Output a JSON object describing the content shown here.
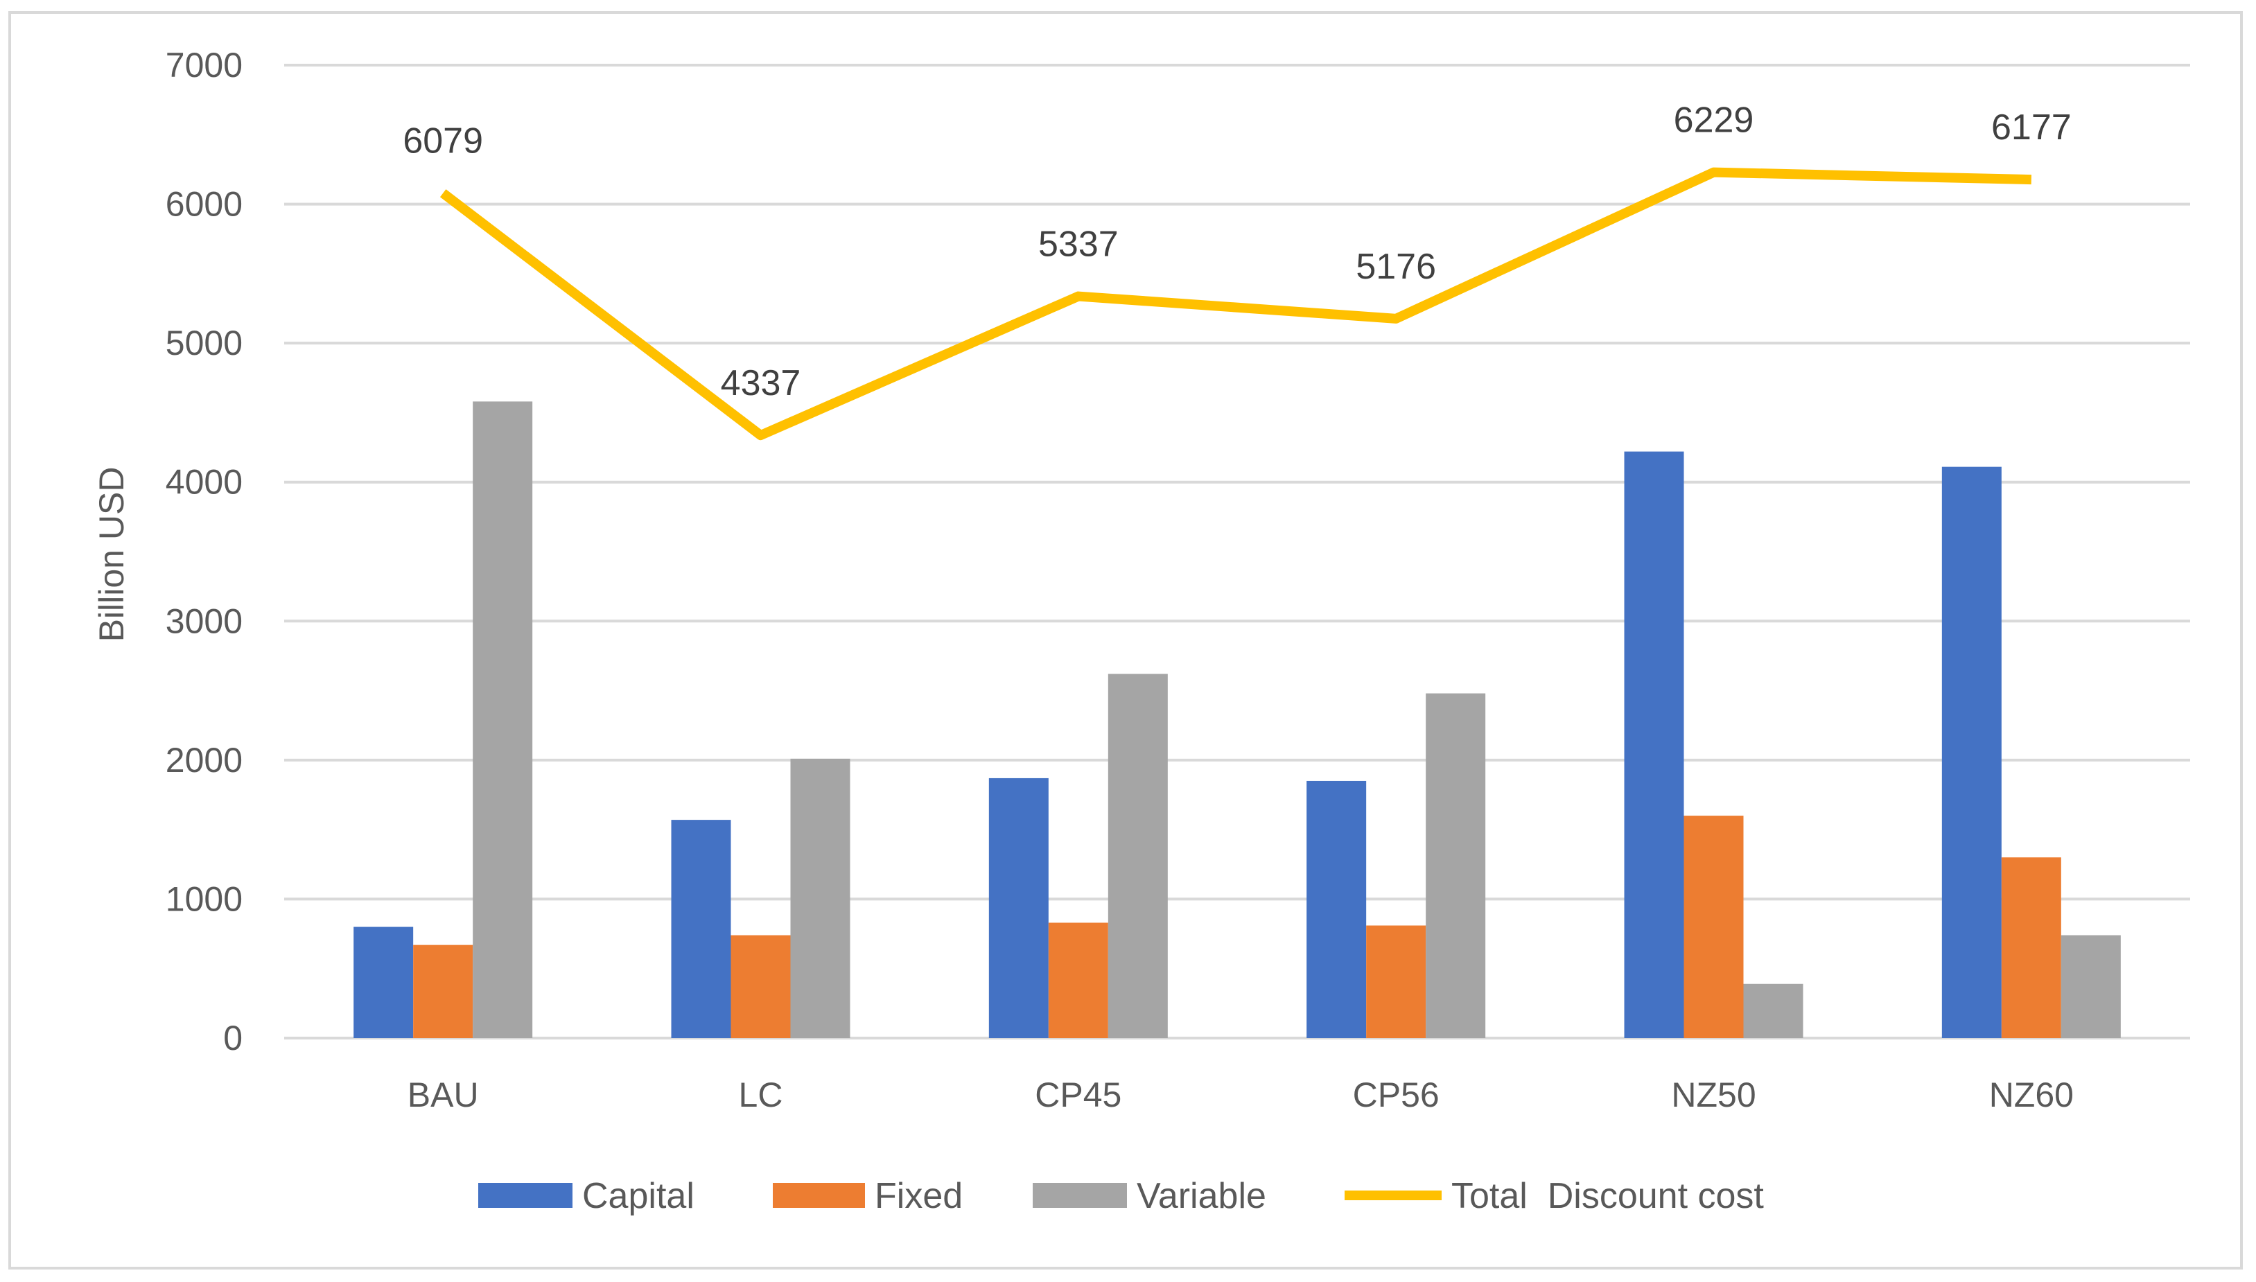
{
  "chart_data": {
    "type": "bar",
    "title": "",
    "xlabel": "",
    "ylabel": "Billion USD",
    "ylim": [
      0,
      7000
    ],
    "yticks": [
      0,
      1000,
      2000,
      3000,
      4000,
      5000,
      6000,
      7000
    ],
    "grid": true,
    "legend_position": "bottom",
    "categories": [
      "BAU",
      "LC",
      "CP45",
      "CP56",
      "NZ50",
      "NZ60"
    ],
    "series": [
      {
        "name": "Capital",
        "type": "bar",
        "color": "#4472C4",
        "values": [
          800,
          1570,
          1870,
          1850,
          4220,
          4110
        ]
      },
      {
        "name": "Fixed",
        "type": "bar",
        "color": "#ED7D31",
        "values": [
          670,
          740,
          830,
          810,
          1600,
          1300
        ]
      },
      {
        "name": "Variable",
        "type": "bar",
        "color": "#A5A5A5",
        "values": [
          4580,
          2010,
          2620,
          2480,
          390,
          740
        ]
      },
      {
        "name": "Total  Discount cost",
        "type": "line",
        "color": "#FFC000",
        "values": [
          6079,
          4337,
          5337,
          5176,
          6229,
          6177
        ],
        "labels": [
          "6079",
          "4337",
          "5337",
          "5176",
          "6229",
          "6177"
        ]
      }
    ]
  }
}
